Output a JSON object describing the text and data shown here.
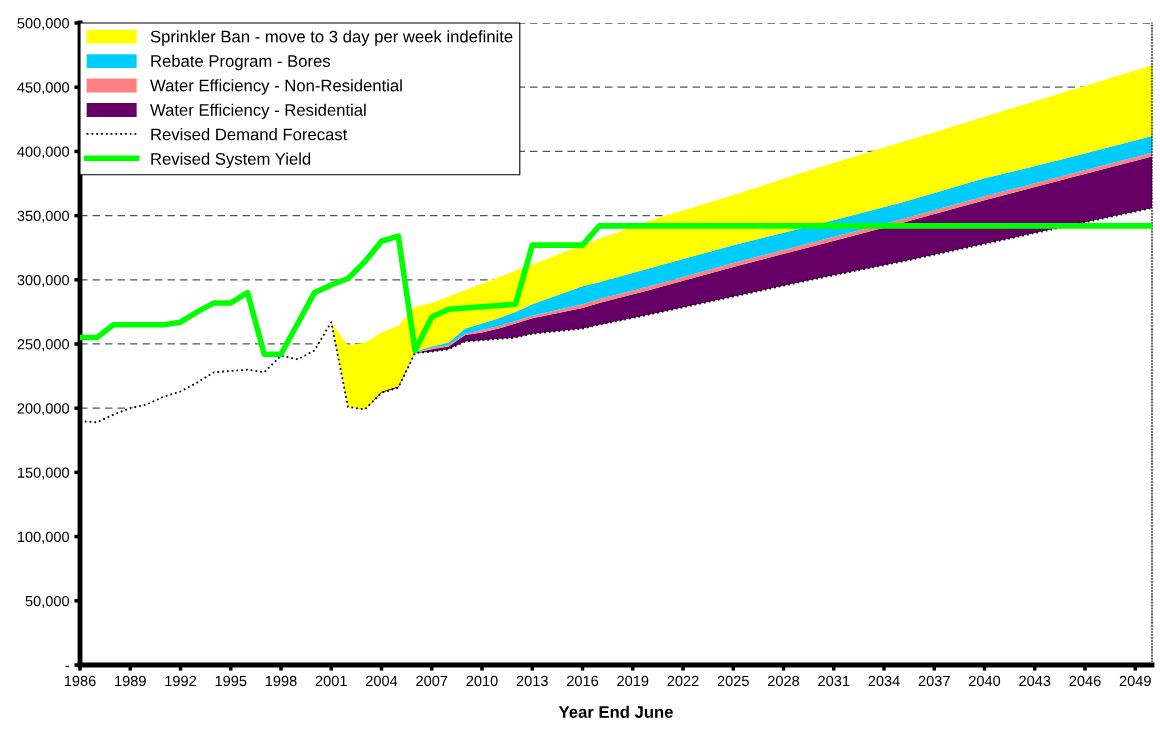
{
  "chart_data": {
    "type": "area",
    "stacked": true,
    "xlabel": "Year End June",
    "x": [
      1986,
      1987,
      1988,
      1989,
      1990,
      1991,
      1992,
      1993,
      1994,
      1995,
      1996,
      1997,
      1998,
      1999,
      2000,
      2001,
      2002,
      2003,
      2004,
      2005,
      2006,
      2007,
      2008,
      2009,
      2010,
      2011,
      2012,
      2013,
      2016,
      2017,
      2020,
      2025,
      2030,
      2035,
      2040,
      2045,
      2050
    ],
    "xlim": [
      1986,
      2050
    ],
    "xticks": [
      1986,
      1989,
      1992,
      1995,
      1998,
      2001,
      2004,
      2007,
      2010,
      2013,
      2016,
      2019,
      2022,
      2025,
      2028,
      2031,
      2034,
      2037,
      2040,
      2043,
      2046,
      2049
    ],
    "ylim": [
      0,
      500000
    ],
    "yticks": [
      {
        "value": 0,
        "label": "-"
      },
      {
        "value": 50000,
        "label": "50,000"
      },
      {
        "value": 100000,
        "label": "100,000"
      },
      {
        "value": 150000,
        "label": "150,000"
      },
      {
        "value": 200000,
        "label": "200,000"
      },
      {
        "value": 250000,
        "label": "250,000"
      },
      {
        "value": 300000,
        "label": "300,000"
      },
      {
        "value": 350000,
        "label": "350,000"
      },
      {
        "value": 400000,
        "label": "400,000"
      },
      {
        "value": 450000,
        "label": "450,000"
      },
      {
        "value": 500000,
        "label": "500,000"
      }
    ],
    "grid": "y",
    "legend": "top left",
    "series": [
      {
        "name": "Revised Demand Forecast",
        "type": "area",
        "line_style": "dotted",
        "color": "#000000",
        "values": [
          190000,
          189000,
          195000,
          200000,
          203000,
          209000,
          213000,
          220000,
          228000,
          229000,
          230000,
          228000,
          241000,
          238000,
          245000,
          267000,
          201000,
          199000,
          212000,
          216000,
          243000,
          244000,
          246000,
          252000,
          253000,
          254000,
          255000,
          258000,
          262000,
          265000,
          273000,
          287000,
          301000,
          314000,
          328000,
          342000,
          356000
        ]
      },
      {
        "name": "Water Efficiency - Residential",
        "color": "#660066",
        "values": [
          null,
          null,
          null,
          null,
          null,
          null,
          null,
          null,
          null,
          null,
          null,
          null,
          null,
          null,
          null,
          0,
          0,
          0,
          1000,
          1000,
          0,
          2000,
          2000,
          5000,
          6000,
          8000,
          11000,
          12000,
          16000,
          17000,
          19000,
          23000,
          26000,
          30000,
          34000,
          37000,
          40000
        ]
      },
      {
        "name": "Water Efficiency - Non-Residential",
        "color": "#ff8080",
        "values": [
          null,
          null,
          null,
          null,
          null,
          null,
          null,
          null,
          null,
          null,
          null,
          null,
          null,
          null,
          null,
          0,
          0,
          0,
          0,
          0,
          0,
          1000,
          1000,
          1000,
          2000,
          2000,
          2000,
          2000,
          3000,
          3000,
          3000,
          3000,
          3000,
          3000,
          3000,
          3000,
          3000
        ]
      },
      {
        "name": "Rebate Program - Bores",
        "color": "#00ccff",
        "values": [
          null,
          null,
          null,
          null,
          null,
          null,
          null,
          null,
          null,
          null,
          null,
          null,
          null,
          null,
          null,
          0,
          0,
          0,
          0,
          0,
          1000,
          1000,
          2000,
          4000,
          5000,
          6000,
          7000,
          9000,
          14000,
          13000,
          14000,
          14000,
          13000,
          13000,
          14000,
          13000,
          13000
        ]
      },
      {
        "name": "Sprinkler Ban - move to 3 day per week indefinite",
        "color": "#ffff00",
        "values": [
          null,
          null,
          null,
          null,
          null,
          null,
          null,
          null,
          null,
          null,
          null,
          null,
          null,
          null,
          null,
          0,
          48000,
          52000,
          46000,
          47000,
          35000,
          34000,
          36000,
          30000,
          31000,
          32000,
          32000,
          31000,
          32000,
          34000,
          37000,
          39000,
          44000,
          47000,
          48000,
          52000,
          55000
        ]
      },
      {
        "name": "Revised System Yield",
        "type": "line",
        "line_style": "solid",
        "color": "#00ff00",
        "values": [
          255000,
          255000,
          265000,
          265000,
          265000,
          265000,
          267000,
          275000,
          282000,
          282000,
          290000,
          242000,
          242000,
          266000,
          290000,
          296000,
          301000,
          314000,
          330000,
          334000,
          245000,
          271000,
          277000,
          278000,
          279000,
          280000,
          281000,
          327000,
          327000,
          342000,
          342000,
          342000,
          342000,
          342000,
          342000,
          342000,
          342000
        ]
      }
    ]
  }
}
